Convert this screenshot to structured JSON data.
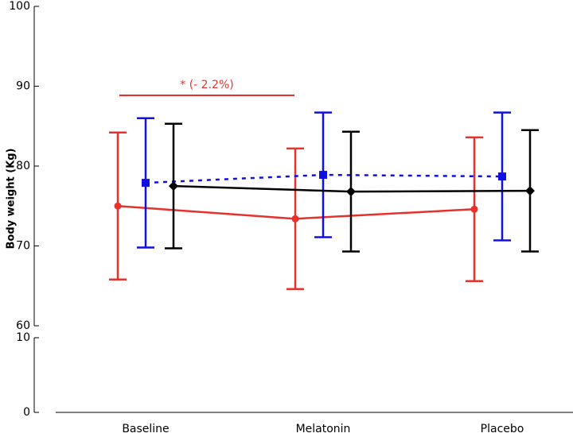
{
  "chart_data": {
    "type": "line",
    "y_label": "Body weight (Kg)",
    "categories": [
      "Baseline",
      "Melatonin",
      "Placebo"
    ],
    "series": [
      {
        "color": "#e8312a",
        "marker": "circle",
        "dash": false,
        "values": [
          75.0,
          73.4,
          74.6
        ],
        "errors": [
          9.2,
          8.8,
          9.0
        ]
      },
      {
        "color": "#1010e0",
        "marker": "square",
        "dash": true,
        "values": [
          77.9,
          78.9,
          78.7
        ],
        "errors": [
          8.1,
          7.8,
          8.0
        ]
      },
      {
        "color": "#000000",
        "marker": "diamond",
        "dash": false,
        "values": [
          77.5,
          76.8,
          76.9
        ],
        "errors": [
          7.8,
          7.5,
          7.6
        ]
      }
    ],
    "ylim": [
      60,
      100
    ],
    "yticks": [
      60,
      70,
      80,
      90,
      100
    ],
    "ylim_lower": [
      0,
      10
    ],
    "yticks_lower": [
      0,
      10
    ],
    "annotation": {
      "text": "* (- 2.2%)",
      "color": "#e8312a",
      "from": "Baseline",
      "to": "Melatonin"
    }
  }
}
